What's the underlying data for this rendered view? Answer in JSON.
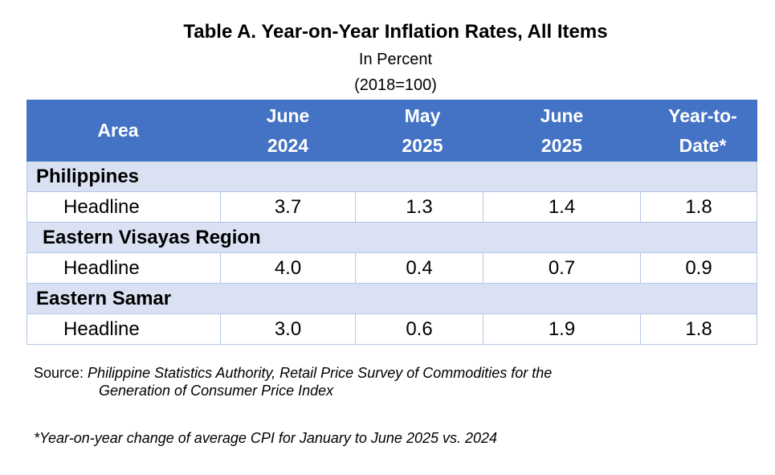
{
  "title": "Table A. Year-on-Year Inflation Rates, All Items",
  "subtitle1": "In Percent",
  "subtitle2": "(2018=100)",
  "table": {
    "headers": {
      "area": "Area",
      "col1_l1": "June",
      "col1_l2": "2024",
      "col2_l1": "May",
      "col2_l2": "2025",
      "col3_l1": "June",
      "col3_l2": "2025",
      "col4_l1": "Year-to-",
      "col4_l2": "Date*"
    },
    "groups": [
      {
        "name": "Philippines",
        "row": {
          "label": "Headline",
          "values": [
            "3.7",
            "1.3",
            "1.4",
            "1.8"
          ]
        }
      },
      {
        "name": "Eastern Visayas Region",
        "row": {
          "label": "Headline",
          "values": [
            "4.0",
            "0.4",
            "0.7",
            "0.9"
          ]
        }
      },
      {
        "name": "Eastern Samar",
        "row": {
          "label": "Headline",
          "values": [
            "3.0",
            "0.6",
            "1.9",
            "1.8"
          ]
        }
      }
    ]
  },
  "source_label": "Source: ",
  "source_line1": "Philippine Statistics Authority, Retail Price Survey of Commodities for the",
  "source_line2": "Generation of Consumer Price Index",
  "note": "*Year-on-year change of average CPI for January to June 2025 vs. 2024"
}
